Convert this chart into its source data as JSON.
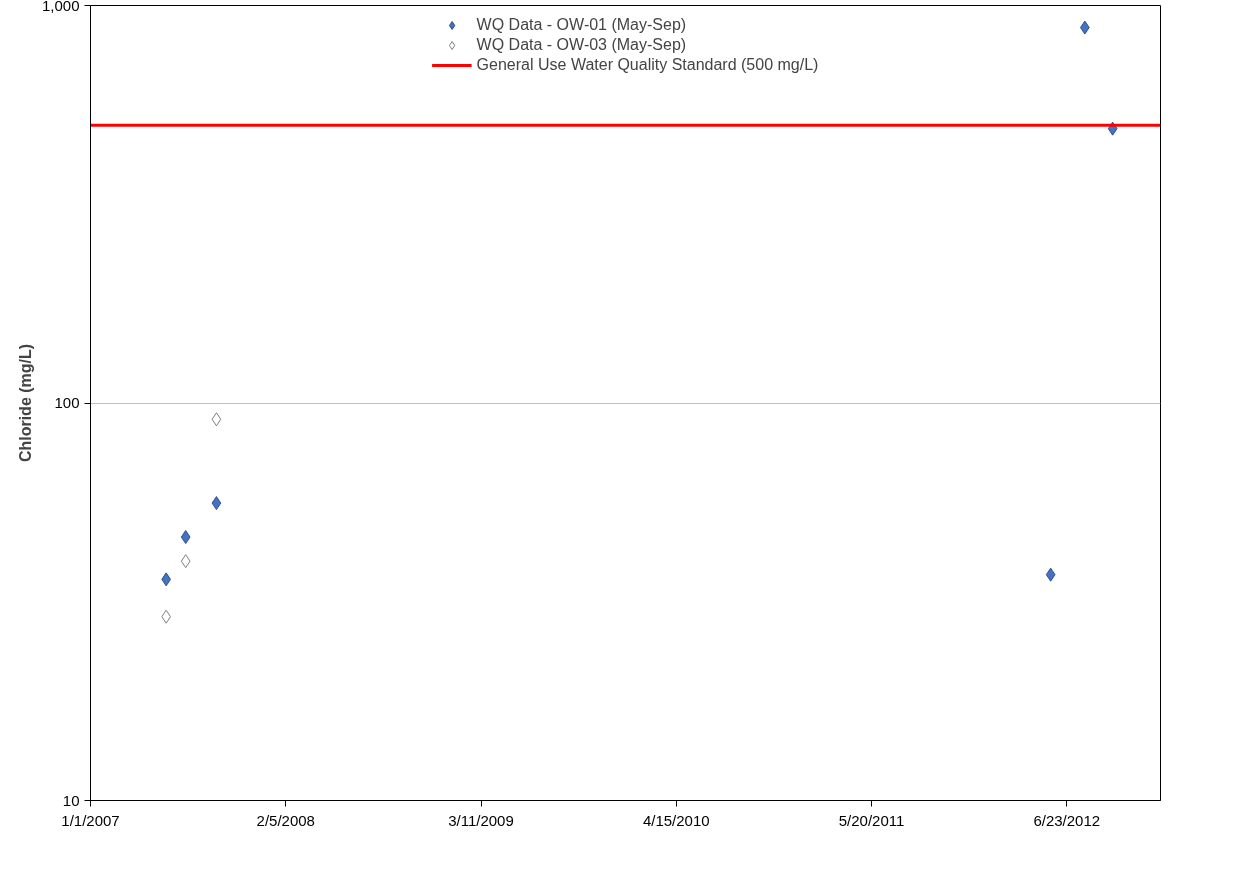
{
  "chart_data": {
    "type": "scatter",
    "ylabel": "Chloride (mg/L)",
    "log": true,
    "grid": "y",
    "legend": "top",
    "marker": "diamond",
    "xlim": [
      "2007-01-01",
      "2013-01-01"
    ],
    "xticks": [
      {
        "value": "2007-01-01",
        "label": "1/1/2007"
      },
      {
        "value": "2008-02-05",
        "label": "2/5/2008"
      },
      {
        "value": "2009-03-11",
        "label": "3/11/2009"
      },
      {
        "value": "2010-04-15",
        "label": "4/15/2010"
      },
      {
        "value": "2011-05-20",
        "label": "5/20/2011"
      },
      {
        "value": "2012-06-23",
        "label": "6/23/2012"
      }
    ],
    "ylim": [
      10,
      1000
    ],
    "yticks": [
      10,
      100,
      {
        "value": 1000,
        "label": "1,000"
      }
    ],
    "series": [
      {
        "name": "WQ Data - OW-01 (May-Sep)",
        "color": "#4472c4",
        "x": [
          "2007-06-05",
          "2007-07-15",
          "2007-09-16",
          "2012-05-21",
          "2012-07-30",
          "2012-09-25"
        ],
        "values": [
          36,
          46,
          56,
          37,
          880,
          490
        ]
      },
      {
        "name": "WQ Data - OW-03 (May-Sep)",
        "color": "#ffffff",
        "x": [
          "2007-06-05",
          "2007-07-15",
          "2007-09-16"
        ],
        "values": [
          29,
          40,
          91
        ]
      }
    ],
    "ref_lines": [
      {
        "axis": "y",
        "value": 500,
        "label": "General Use Water Quality Standard (500 mg/L)",
        "color": "#ff0000",
        "line_style": "solid"
      }
    ]
  }
}
